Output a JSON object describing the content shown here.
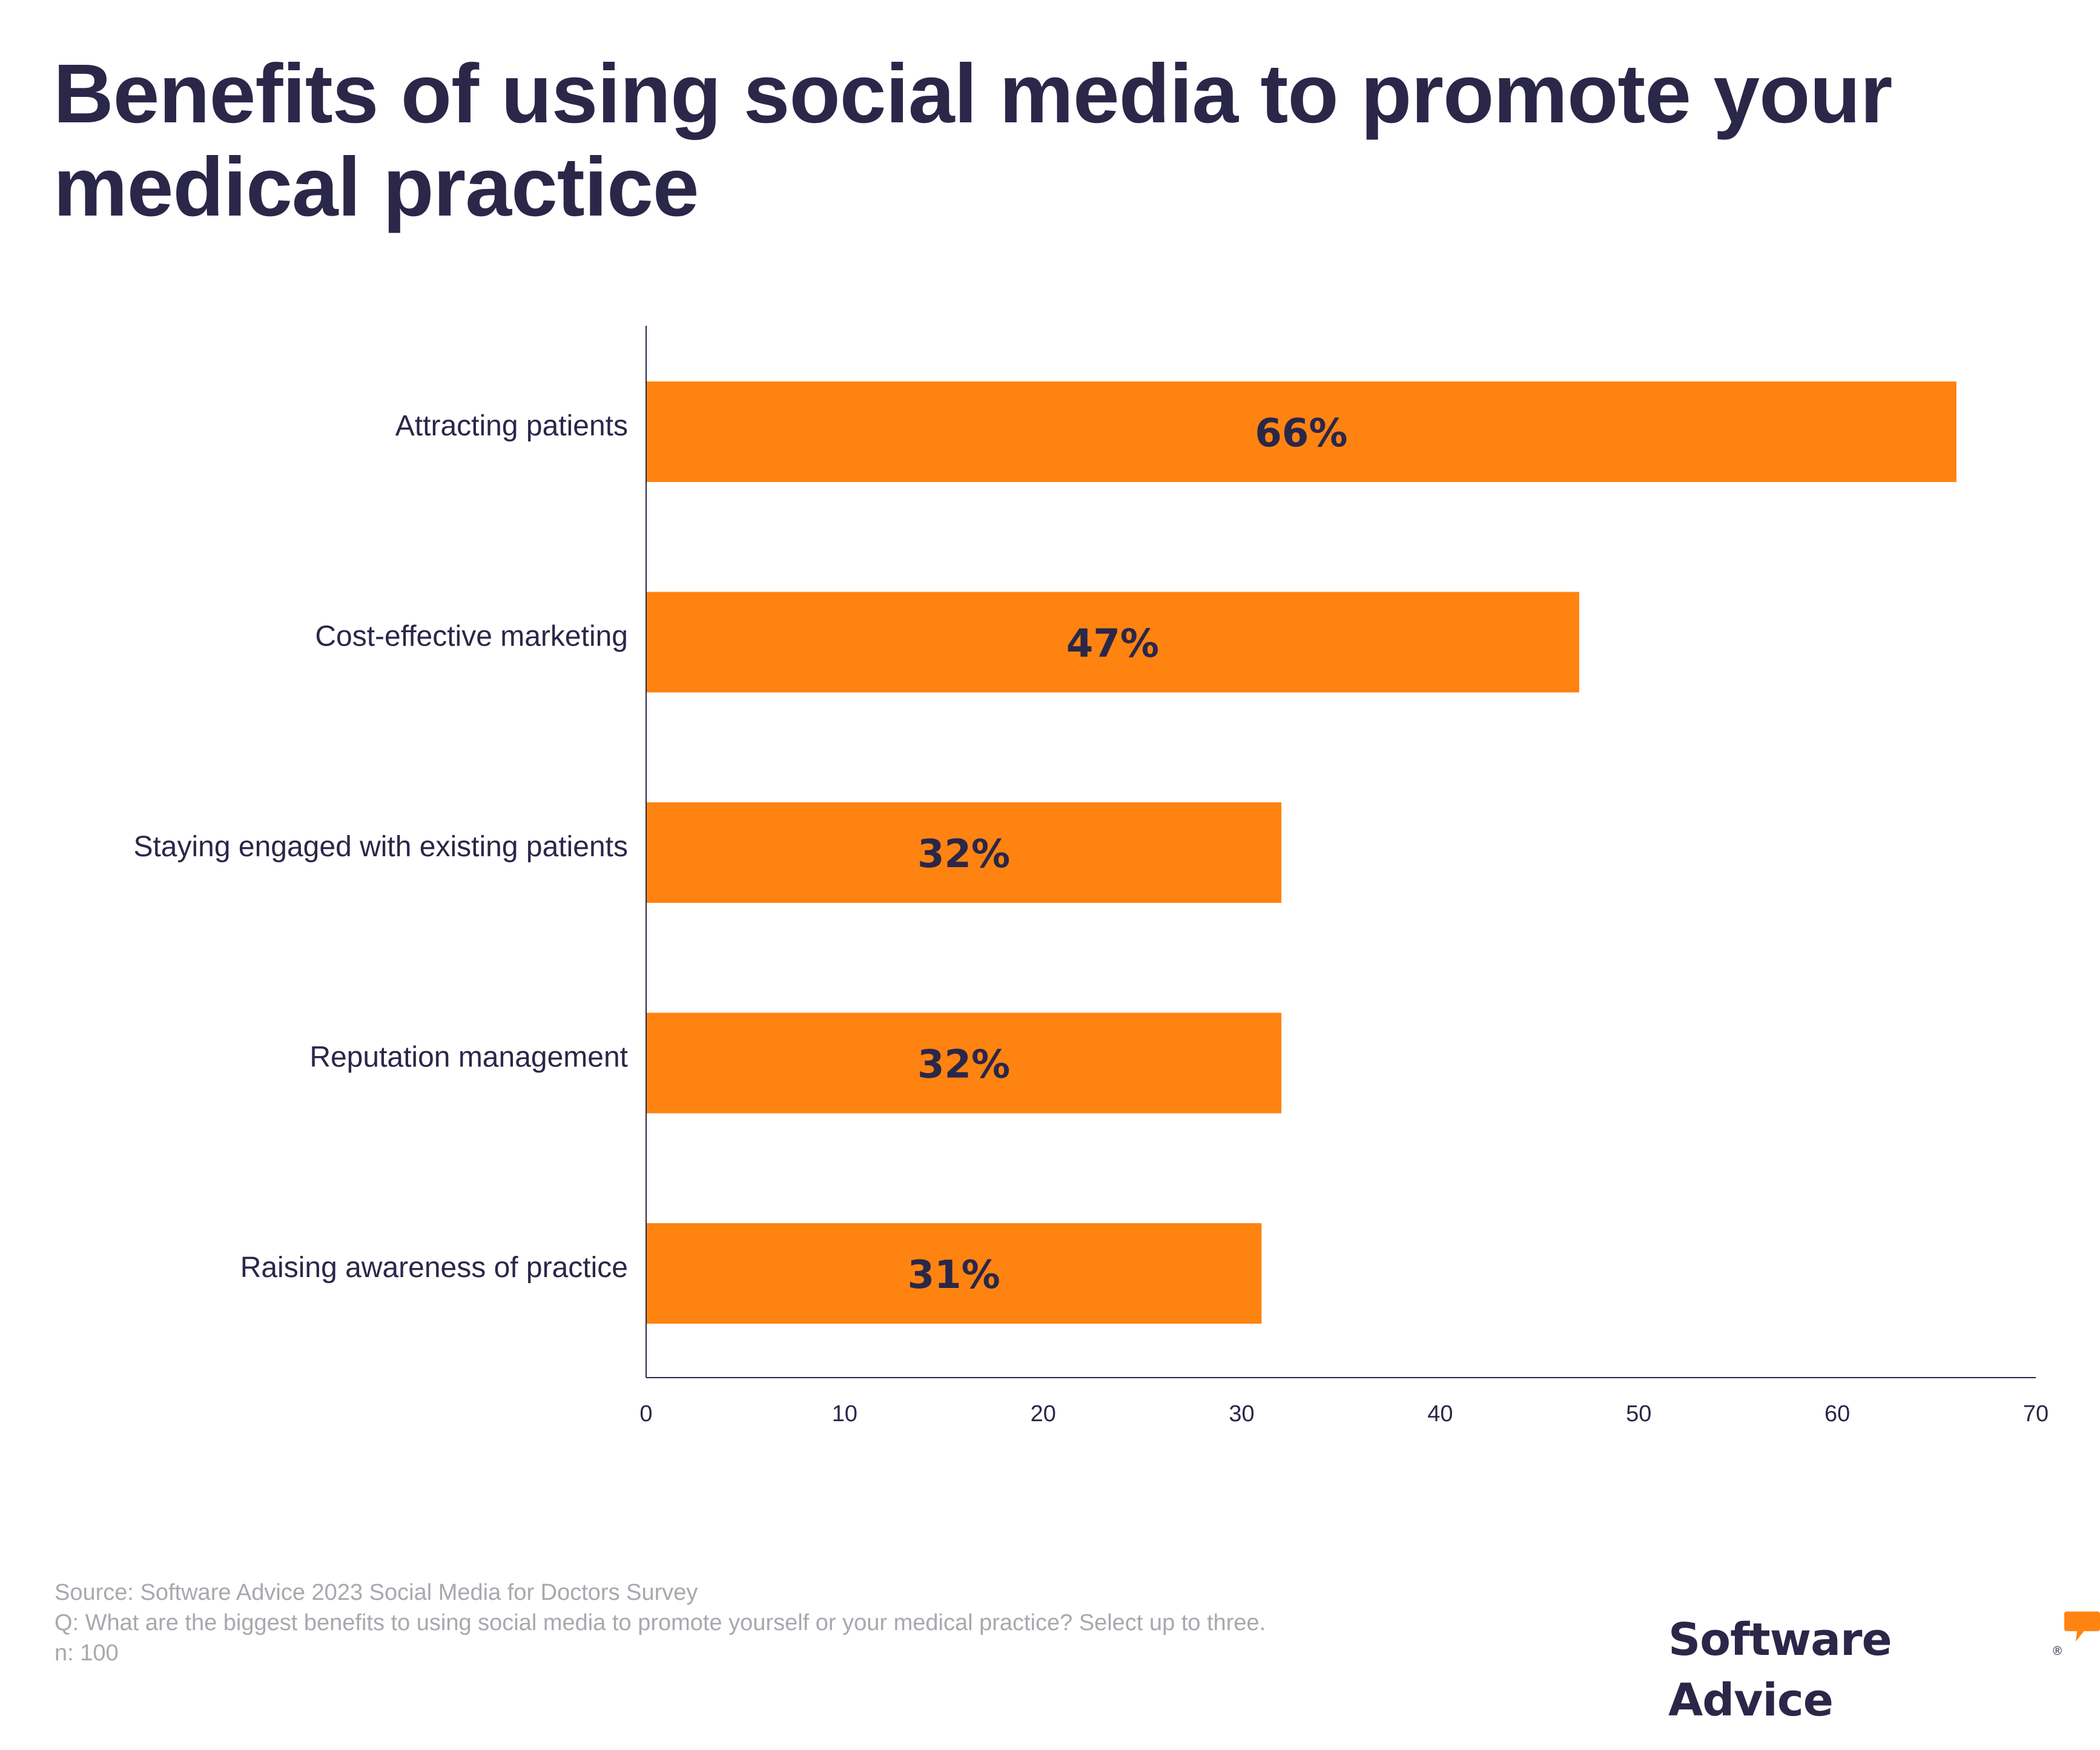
{
  "chart_data": {
    "type": "bar",
    "orientation": "horizontal",
    "title": "Benefits of using social media to promote your medical practice",
    "categories": [
      "Attracting patients",
      "Cost-effective marketing",
      "Staying engaged with existing patients",
      "Reputation management",
      "Raising awareness of practice"
    ],
    "values": [
      66,
      47,
      32,
      32,
      31
    ],
    "data_labels": [
      "66%",
      "47%",
      "32%",
      "32%",
      "31%"
    ],
    "xlim": [
      0,
      70
    ],
    "x_ticks": [
      "0",
      "10",
      "20",
      "30",
      "40",
      "50",
      "60",
      "70"
    ],
    "xlabel": "",
    "ylabel": "",
    "grid": false,
    "bar_color": "#ff8311"
  },
  "footer": {
    "source": "Source: Software Advice 2023 Social Media for Doctors Survey",
    "question": "Q: What are the biggest benefits to using social media to promote yourself or your medical practice? Select up to three.",
    "sample": "n: 100"
  },
  "logo": {
    "text": "Software Advice",
    "reg_mark": "®",
    "accent_color": "#ff8311"
  }
}
